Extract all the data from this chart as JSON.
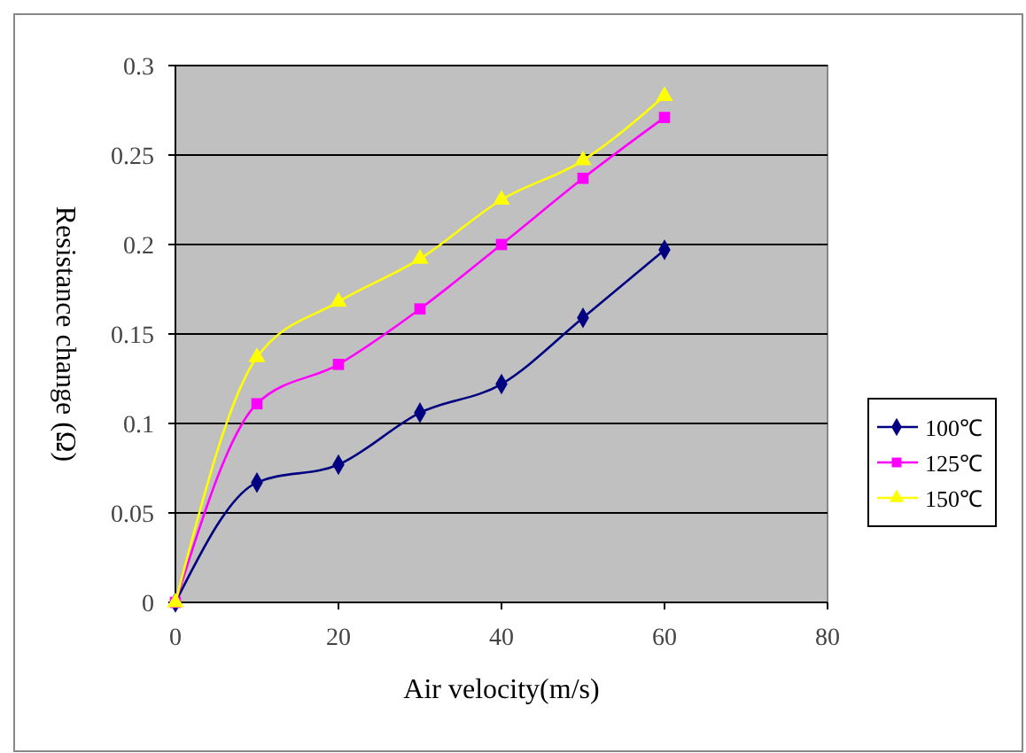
{
  "chart_data": {
    "type": "line",
    "xlabel": "Air velocity(m/s)",
    "ylabel": "Resistance change (Ω)",
    "x": [
      0,
      10,
      20,
      30,
      40,
      50,
      60
    ],
    "xlim": [
      0,
      80
    ],
    "xticks": [
      0,
      20,
      40,
      60,
      80
    ],
    "ylim": [
      0,
      0.3
    ],
    "yticks": [
      0,
      0.05,
      0.1,
      0.15,
      0.2,
      0.25,
      0.3
    ],
    "grid": "y",
    "legend": "right",
    "series": [
      {
        "name": "100℃",
        "color": "#000080",
        "marker": "diamond",
        "values": [
          0,
          0.067,
          0.077,
          0.106,
          0.122,
          0.159,
          0.197
        ]
      },
      {
        "name": "125℃",
        "color": "#ff00ff",
        "marker": "square",
        "values": [
          0,
          0.111,
          0.133,
          0.164,
          0.2,
          0.237,
          0.271
        ]
      },
      {
        "name": "150℃",
        "color": "#ffff00",
        "marker": "triangle",
        "values": [
          0,
          0.137,
          0.168,
          0.192,
          0.225,
          0.247,
          0.283
        ]
      }
    ]
  }
}
